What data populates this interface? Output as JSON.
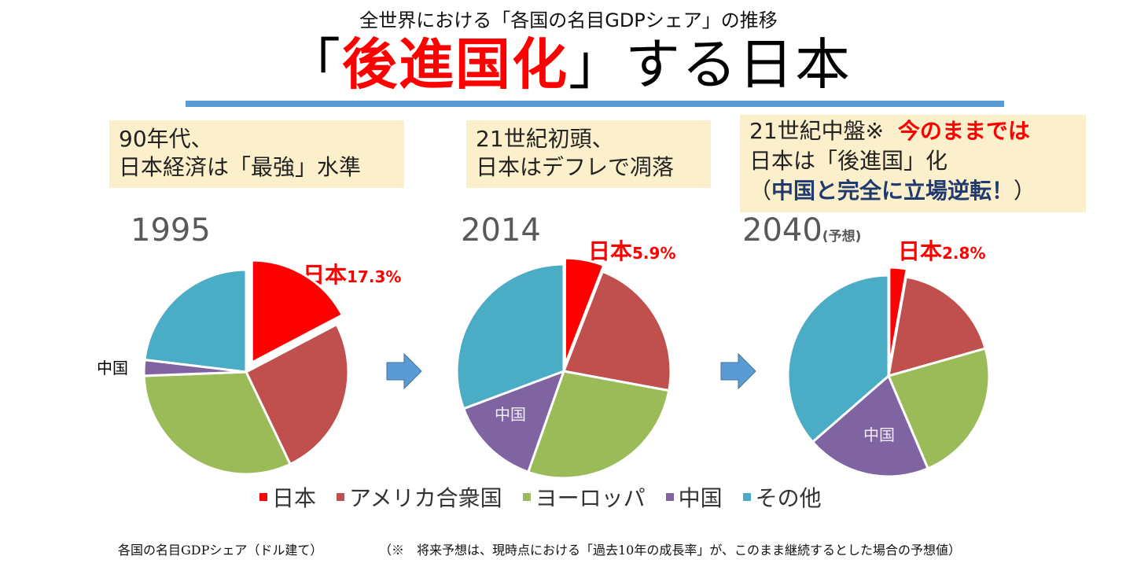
{
  "header": {
    "subtitle": "全世界における「各国の名目GDPシェア」の推移",
    "title_open": "「",
    "title_red": "後進国化",
    "title_close": "」",
    "title_rest": "する日本"
  },
  "notes": [
    {
      "line1": "90年代、",
      "line2": "日本経済は「最強」水準"
    },
    {
      "line1": "21世紀初頭、",
      "line2": "日本はデフレで凋落"
    },
    {
      "line1_black": "21世紀中盤※",
      "line1_red": "今のままでは",
      "line2": "日本は「後進国」化",
      "line3_open": "（",
      "line3_navy": "中国と完全に立場逆転！",
      "line3_close": "）"
    }
  ],
  "years": [
    {
      "label": "1995",
      "suffix": ""
    },
    {
      "label": "2014",
      "suffix": ""
    },
    {
      "label": "2040",
      "suffix": "(予想)"
    }
  ],
  "japan_labels": [
    {
      "name": "日本",
      "pct": "17.3%"
    },
    {
      "name": "日本",
      "pct": "5.9%"
    },
    {
      "name": "日本",
      "pct": "2.8%"
    }
  ],
  "china_label": "中国",
  "legend": [
    {
      "label": "日本",
      "color": "#ff0000"
    },
    {
      "label": "アメリカ合衆国",
      "color": "#c0504d"
    },
    {
      "label": "ヨーロッパ",
      "color": "#9bbb59"
    },
    {
      "label": "中国",
      "color": "#8064a2"
    },
    {
      "label": "その他",
      "color": "#4bacc6"
    }
  ],
  "footer": {
    "left": "各国の名目GDPシェア（ドル建て）",
    "right": "（※　将来予想は、現時点における「過去10年の成長率」が、このまま継続するとした場合の予想値）"
  },
  "arrow_color": "#5b9bd5",
  "chart_data": [
    {
      "type": "pie",
      "title": "1995",
      "categories": [
        "日本",
        "アメリカ合衆国",
        "ヨーロッパ",
        "中国",
        "その他"
      ],
      "values": [
        17.3,
        25.6,
        31.5,
        2.5,
        23.1
      ],
      "exploded": [
        "日本"
      ],
      "data_labels": {
        "日本": "17.3%"
      },
      "legend": "bottom"
    },
    {
      "type": "pie",
      "title": "2014",
      "categories": [
        "日本",
        "アメリカ合衆国",
        "ヨーロッパ",
        "中国",
        "その他"
      ],
      "values": [
        5.9,
        22.0,
        27.5,
        13.9,
        30.7
      ],
      "exploded": [
        "日本"
      ],
      "data_labels": {
        "日本": "5.9%"
      },
      "legend": "bottom"
    },
    {
      "type": "pie",
      "title": "2040(予想)",
      "categories": [
        "日本",
        "アメリカ合衆国",
        "ヨーロッパ",
        "中国",
        "その他"
      ],
      "values": [
        2.8,
        17.8,
        23.0,
        20.0,
        36.4
      ],
      "exploded": [
        "日本"
      ],
      "data_labels": {
        "日本": "2.8%"
      },
      "legend": "bottom"
    }
  ]
}
